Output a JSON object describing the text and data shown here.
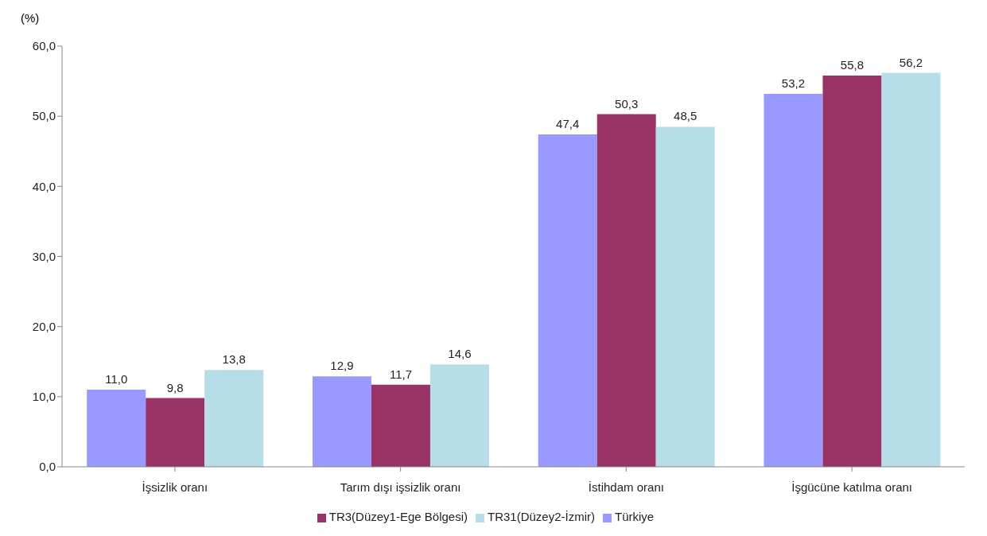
{
  "chart_data": {
    "type": "bar",
    "ylabel": "(%)",
    "categories": [
      "İşsizlik oranı",
      "Tarım dışı işsizlik oranı",
      "İstihdam oranı",
      "İşgücüne katılma oranı"
    ],
    "series": [
      {
        "name": "Türkiye",
        "color": "#9999ff",
        "values": [
          11.0,
          12.9,
          47.4,
          53.2
        ],
        "value_labels": [
          "11,0",
          "12,9",
          "47,4",
          "53,2"
        ]
      },
      {
        "name": "TR3(Düzey1-Ege Bölgesi)",
        "color": "#993366",
        "values": [
          9.8,
          11.7,
          50.3,
          55.8
        ],
        "value_labels": [
          "9,8",
          "11,7",
          "50,3",
          "55,8"
        ]
      },
      {
        "name": "TR31(Düzey2-İzmir)",
        "color": "#b7dee8",
        "values": [
          13.8,
          14.6,
          48.5,
          56.2
        ],
        "value_labels": [
          "13,8",
          "14,6",
          "48,5",
          "56,2"
        ]
      }
    ],
    "ylim": [
      0,
      60
    ],
    "yticks": [
      {
        "value": 0,
        "label": "0,0"
      },
      {
        "value": 10,
        "label": "10,0"
      },
      {
        "value": 20,
        "label": "20,0"
      },
      {
        "value": 30,
        "label": "30,0"
      },
      {
        "value": 40,
        "label": "40,0"
      },
      {
        "value": 50,
        "label": "50,0"
      },
      {
        "value": 60,
        "label": "60,0"
      }
    ],
    "grid": false,
    "legend": "bottom"
  }
}
